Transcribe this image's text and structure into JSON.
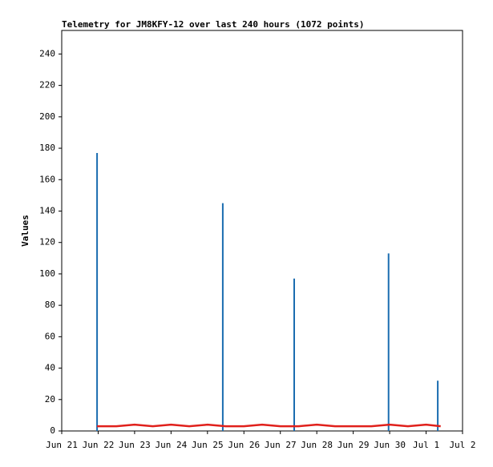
{
  "chart_data": {
    "type": "telemetry",
    "title": "Telemetry for JM8KFY-12 over last 240 hours (1072 points)",
    "y_label": "Values",
    "xlim": [
      0,
      11
    ],
    "xticks": [
      {
        "value": 0,
        "label": "Jun 21"
      },
      {
        "value": 1,
        "label": "Jun 22"
      },
      {
        "value": 2,
        "label": "Jun 23"
      },
      {
        "value": 3,
        "label": "Jun 24"
      },
      {
        "value": 4,
        "label": "Jun 25"
      },
      {
        "value": 5,
        "label": "Jun 26"
      },
      {
        "value": 6,
        "label": "Jun 27"
      },
      {
        "value": 7,
        "label": "Jun 28"
      },
      {
        "value": 8,
        "label": "Jun 29"
      },
      {
        "value": 9,
        "label": "Jun 30"
      },
      {
        "value": 10,
        "label": "Jul 1"
      },
      {
        "value": 11,
        "label": "Jul 2"
      }
    ],
    "ylim": [
      0,
      255
    ],
    "yticks": [
      0,
      20,
      40,
      60,
      80,
      100,
      120,
      140,
      160,
      180,
      200,
      220,
      240
    ],
    "series": [
      {
        "style": "spike",
        "color": "#1a6cb0",
        "x": [
          0.97,
          4.42,
          6.38,
          8.97,
          10.32
        ],
        "values": [
          177,
          145,
          97,
          113,
          32
        ]
      },
      {
        "style": "line",
        "color": "#e0201b",
        "x": [
          0.97,
          1.5,
          2.0,
          2.5,
          3.0,
          3.5,
          4.0,
          4.5,
          5.0,
          5.5,
          6.0,
          6.5,
          7.0,
          7.5,
          8.0,
          8.5,
          9.0,
          9.5,
          10.0,
          10.4
        ],
        "values": [
          3,
          3,
          4,
          3,
          4,
          3,
          4,
          3,
          3,
          4,
          3,
          3,
          4,
          3,
          3,
          3,
          4,
          3,
          4,
          3
        ]
      }
    ]
  }
}
